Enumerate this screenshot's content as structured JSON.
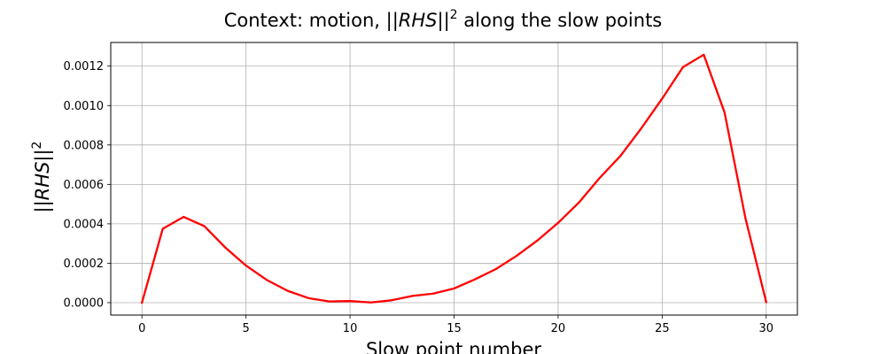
{
  "chart_data": {
    "type": "line",
    "title": {
      "prefix": "Context: motion, ||",
      "math": "RHS",
      "suffix": "||",
      "superscript": "2",
      "tail": " along the slow points"
    },
    "xlabel": "Slow point number",
    "ylabel": {
      "prefix": "||",
      "math": "RHS",
      "suffix": "||",
      "superscript": "2"
    },
    "xlim": [
      -1.5,
      31.5
    ],
    "ylim": [
      -6.3e-05,
      0.00132
    ],
    "xticks": [
      0,
      5,
      10,
      15,
      20,
      25,
      30
    ],
    "xtick_labels": [
      "0",
      "5",
      "10",
      "15",
      "20",
      "25",
      "30"
    ],
    "yticks": [
      0,
      0.0002,
      0.0004,
      0.0006,
      0.0008,
      0.001,
      0.0012
    ],
    "ytick_labels": [
      "0.0000",
      "0.0002",
      "0.0004",
      "0.0006",
      "0.0008",
      "0.0010",
      "0.0012"
    ],
    "grid": true,
    "series": [
      {
        "color": "#ff0000",
        "x": [
          0,
          1,
          2,
          3,
          4,
          5,
          6,
          7,
          8,
          9,
          10,
          11,
          12,
          13,
          14,
          15,
          16,
          17,
          18,
          19,
          20,
          21,
          22,
          23,
          24,
          25,
          26,
          27,
          28,
          29,
          30
        ],
        "y": [
          0,
          0.000375,
          0.000435,
          0.000388,
          0.00028,
          0.000188,
          0.000115,
          6e-05,
          2.3e-05,
          6e-06,
          8e-06,
          1e-06,
          1.2e-05,
          3.4e-05,
          4.6e-05,
          7.2e-05,
          0.000118,
          0.00017,
          0.000237,
          0.000315,
          0.000405,
          0.000508,
          0.000633,
          0.000745,
          0.000885,
          0.001035,
          0.001195,
          0.001258,
          0.000965,
          0.00043,
          3e-06
        ]
      }
    ]
  }
}
